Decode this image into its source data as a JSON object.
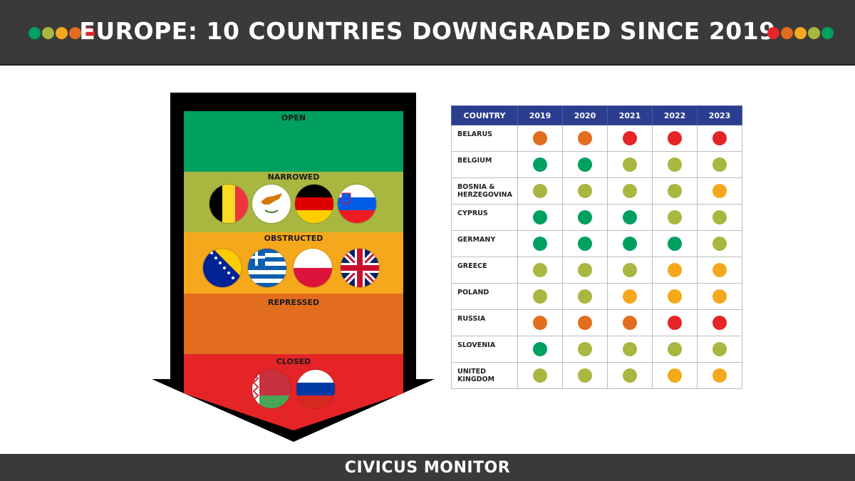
{
  "header": {
    "title": "EUROPE: 10 COUNTRIES DOWNGRADED SINCE 2019"
  },
  "footer": {
    "brand": "CIVICUS MONITOR"
  },
  "ratings": [
    {
      "label": "OPEN",
      "color": "#00a060"
    },
    {
      "label": "NARROWED",
      "color": "#a9b640"
    },
    {
      "label": "OBSTRUCTED",
      "color": "#f5a81c"
    },
    {
      "label": "REPRESSED",
      "color": "#e26d1f"
    },
    {
      "label": "CLOSED",
      "color": "#e52428"
    }
  ],
  "arrow": {
    "narrowed_flags": [
      "belgium-flag-icon",
      "cyprus-flag-icon",
      "germany-flag-icon",
      "slovenia-flag-icon"
    ],
    "obstructed_flags": [
      "bosnia-flag-icon",
      "greece-flag-icon",
      "poland-flag-icon",
      "uk-flag-icon"
    ],
    "closed_flags": [
      "belarus-flag-icon",
      "russia-flag-icon"
    ]
  },
  "table": {
    "header_country": "COUNTRY",
    "years": [
      "2019",
      "2020",
      "2021",
      "2022",
      "2023"
    ],
    "rows": [
      {
        "country": [
          "BELARUS"
        ],
        "ratings": [
          "REPRESSED",
          "REPRESSED",
          "CLOSED",
          "CLOSED",
          "CLOSED"
        ]
      },
      {
        "country": [
          "BELGIUM"
        ],
        "ratings": [
          "OPEN",
          "OPEN",
          "NARROWED",
          "NARROWED",
          "NARROWED"
        ]
      },
      {
        "country": [
          "BOSNIA &",
          "HERZEGOVINA"
        ],
        "ratings": [
          "NARROWED",
          "NARROWED",
          "NARROWED",
          "NARROWED",
          "OBSTRUCTED"
        ]
      },
      {
        "country": [
          "CYPRUS"
        ],
        "ratings": [
          "OPEN",
          "OPEN",
          "OPEN",
          "NARROWED",
          "NARROWED"
        ]
      },
      {
        "country": [
          "GERMANY"
        ],
        "ratings": [
          "OPEN",
          "OPEN",
          "OPEN",
          "OPEN",
          "NARROWED"
        ]
      },
      {
        "country": [
          "GREECE"
        ],
        "ratings": [
          "NARROWED",
          "NARROWED",
          "NARROWED",
          "OBSTRUCTED",
          "OBSTRUCTED"
        ]
      },
      {
        "country": [
          "POLAND"
        ],
        "ratings": [
          "NARROWED",
          "NARROWED",
          "OBSTRUCTED",
          "OBSTRUCTED",
          "OBSTRUCTED"
        ]
      },
      {
        "country": [
          "RUSSIA"
        ],
        "ratings": [
          "REPRESSED",
          "REPRESSED",
          "REPRESSED",
          "CLOSED",
          "CLOSED"
        ]
      },
      {
        "country": [
          "SLOVENIA"
        ],
        "ratings": [
          "OPEN",
          "NARROWED",
          "NARROWED",
          "NARROWED",
          "NARROWED"
        ]
      },
      {
        "country": [
          "UNITED",
          "KINGDOM"
        ],
        "ratings": [
          "NARROWED",
          "NARROWED",
          "NARROWED",
          "OBSTRUCTED",
          "OBSTRUCTED"
        ]
      }
    ]
  },
  "colors": {
    "header_bg": "#3a3a3a",
    "table_header_bg": "#2b3d8f",
    "left_dots": [
      "#00a060",
      "#a9b640",
      "#f5a81c",
      "#e26d1f",
      "#e52428"
    ],
    "right_dots": [
      "#e52428",
      "#e26d1f",
      "#f5a81c",
      "#a9b640",
      "#00a060"
    ]
  }
}
